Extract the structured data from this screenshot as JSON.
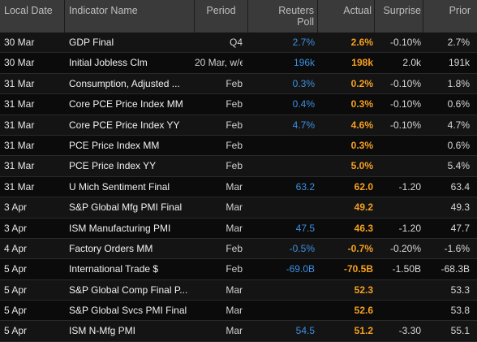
{
  "headers": {
    "local_date": "Local Date",
    "indicator_name": "Indicator Name",
    "period": "Period",
    "reuters_poll_line1": "Reuters",
    "reuters_poll_line2": "Poll",
    "actual": "Actual",
    "surprise": "Surprise",
    "prior": "Prior"
  },
  "rows": [
    {
      "date": "30 Mar",
      "name": "GDP Final",
      "period": "Q4",
      "poll": "2.7%",
      "actual": "2.6%",
      "surprise": "-0.10%",
      "prior": "2.7%"
    },
    {
      "date": "30 Mar",
      "name": "Initial Jobless Clm",
      "period": "20 Mar, w/e",
      "poll": "196k",
      "actual": "198k",
      "surprise": "2.0k",
      "prior": "191k"
    },
    {
      "date": "31 Mar",
      "name": "Consumption, Adjusted ...",
      "period": "Feb",
      "poll": "0.3%",
      "actual": "0.2%",
      "surprise": "-0.10%",
      "prior": "1.8%"
    },
    {
      "date": "31 Mar",
      "name": "Core PCE Price Index MM",
      "period": "Feb",
      "poll": "0.4%",
      "actual": "0.3%",
      "surprise": "-0.10%",
      "prior": "0.6%"
    },
    {
      "date": "31 Mar",
      "name": "Core PCE Price Index YY",
      "period": "Feb",
      "poll": "4.7%",
      "actual": "4.6%",
      "surprise": "-0.10%",
      "prior": "4.7%"
    },
    {
      "date": "31 Mar",
      "name": "PCE Price Index MM",
      "period": "Feb",
      "poll": "",
      "actual": "0.3%",
      "surprise": "",
      "prior": "0.6%"
    },
    {
      "date": "31 Mar",
      "name": "PCE Price Index YY",
      "period": "Feb",
      "poll": "",
      "actual": "5.0%",
      "surprise": "",
      "prior": "5.4%"
    },
    {
      "date": "31 Mar",
      "name": "U Mich Sentiment Final",
      "period": "Mar",
      "poll": "63.2",
      "actual": "62.0",
      "surprise": "-1.20",
      "prior": "63.4"
    },
    {
      "date": "3 Apr",
      "name": "S&P Global Mfg PMI Final",
      "period": "Mar",
      "poll": "",
      "actual": "49.2",
      "surprise": "",
      "prior": "49.3"
    },
    {
      "date": "3 Apr",
      "name": "ISM Manufacturing PMI",
      "period": "Mar",
      "poll": "47.5",
      "actual": "46.3",
      "surprise": "-1.20",
      "prior": "47.7"
    },
    {
      "date": "4 Apr",
      "name": "Factory Orders MM",
      "period": "Feb",
      "poll": "-0.5%",
      "actual": "-0.7%",
      "surprise": "-0.20%",
      "prior": "-1.6%"
    },
    {
      "date": "5 Apr",
      "name": "International Trade $",
      "period": "Feb",
      "poll": "-69.0B",
      "actual": "-70.5B",
      "surprise": "-1.50B",
      "prior": "-68.3B"
    },
    {
      "date": "5 Apr",
      "name": "S&P Global Comp Final P...",
      "period": "Mar",
      "poll": "",
      "actual": "52.3",
      "surprise": "",
      "prior": "53.3"
    },
    {
      "date": "5 Apr",
      "name": "S&P Global Svcs PMI Final",
      "period": "Mar",
      "poll": "",
      "actual": "52.6",
      "surprise": "",
      "prior": "53.8"
    },
    {
      "date": "5 Apr",
      "name": "ISM N-Mfg PMI",
      "period": "Mar",
      "poll": "54.5",
      "actual": "51.2",
      "surprise": "-3.30",
      "prior": "55.1"
    }
  ]
}
